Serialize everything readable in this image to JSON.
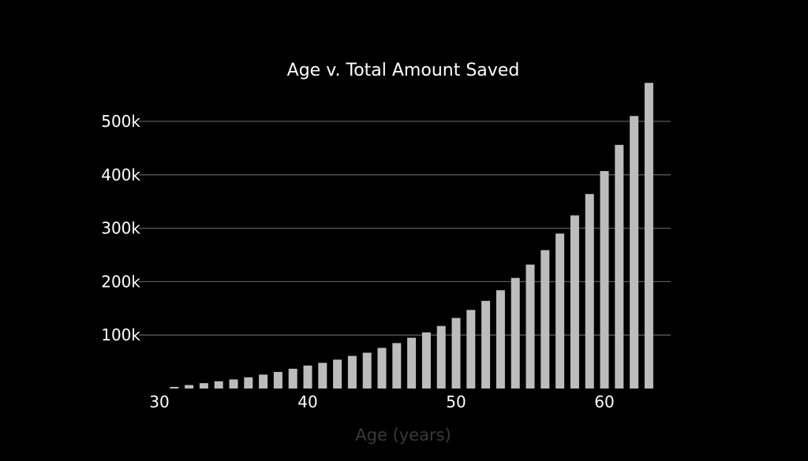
{
  "chart_data": {
    "type": "bar",
    "title": "Age v. Total Amount Saved",
    "xlabel": "Age (years)",
    "ylabel": "",
    "grid": true,
    "legend": "none",
    "xlim": [
      30,
      63
    ],
    "ylim": [
      0,
      575000
    ],
    "x_ticks": [
      30,
      40,
      50,
      60
    ],
    "y_ticks": [
      100000,
      200000,
      300000,
      400000,
      500000
    ],
    "y_tick_labels": [
      "100k",
      "200k",
      "300k",
      "400k",
      "500k"
    ],
    "x": [
      31,
      32,
      33,
      34,
      35,
      36,
      37,
      38,
      39,
      40,
      41,
      42,
      43,
      44,
      45,
      46,
      47,
      48,
      49,
      50,
      51,
      52,
      53,
      54,
      55,
      56,
      57,
      58,
      59,
      60,
      61,
      62,
      63
    ],
    "values": [
      3000,
      6500,
      10000,
      13500,
      17000,
      21000,
      26000,
      31000,
      37000,
      43000,
      48000,
      54000,
      61000,
      67000,
      76000,
      85000,
      95000,
      105000,
      117000,
      132000,
      147000,
      164000,
      184000,
      207000,
      232000,
      259000,
      290000,
      324000,
      364000,
      407000,
      456000,
      510000,
      572000
    ],
    "colors": {
      "background": "#000000",
      "bar": "#bcbcbc",
      "grid": "#5a5a5a",
      "text": "#ffffff",
      "axis_title": "#3a3a3a"
    }
  }
}
